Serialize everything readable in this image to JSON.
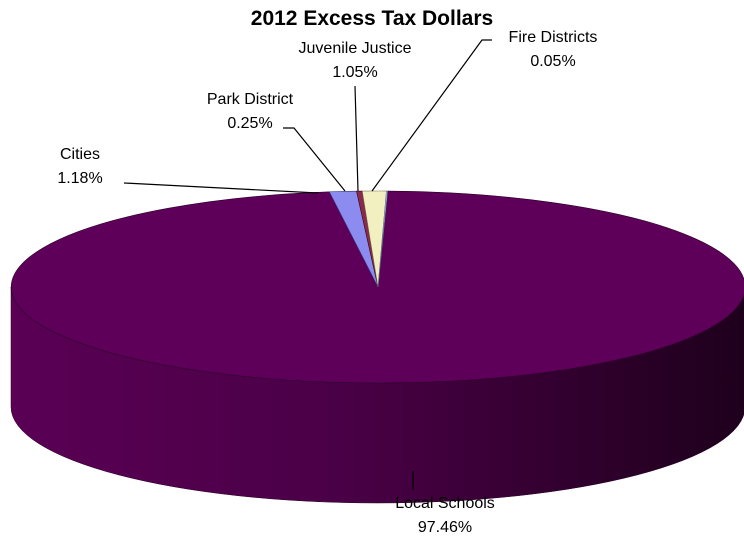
{
  "chart_data": {
    "type": "pie",
    "title": "2012 Excess Tax Dollars",
    "three_d": true,
    "legend": "none",
    "slices": [
      {
        "label": "Local Schools",
        "value": 97.46,
        "value_label": "97.46%",
        "color": "#5e0059"
      },
      {
        "label": "Cities",
        "value": 1.18,
        "value_label": "1.18%",
        "color": "#8c8cf0"
      },
      {
        "label": "Park District",
        "value": 0.25,
        "value_label": "0.25%",
        "color": "#8a2a4a"
      },
      {
        "label": "Juvenile Justice",
        "value": 1.05,
        "value_label": "1.05%",
        "color": "#f2f0c0"
      },
      {
        "label": "Fire Districts",
        "value": 0.05,
        "value_label": "0.05%",
        "color": "#c8d8f0"
      }
    ]
  }
}
